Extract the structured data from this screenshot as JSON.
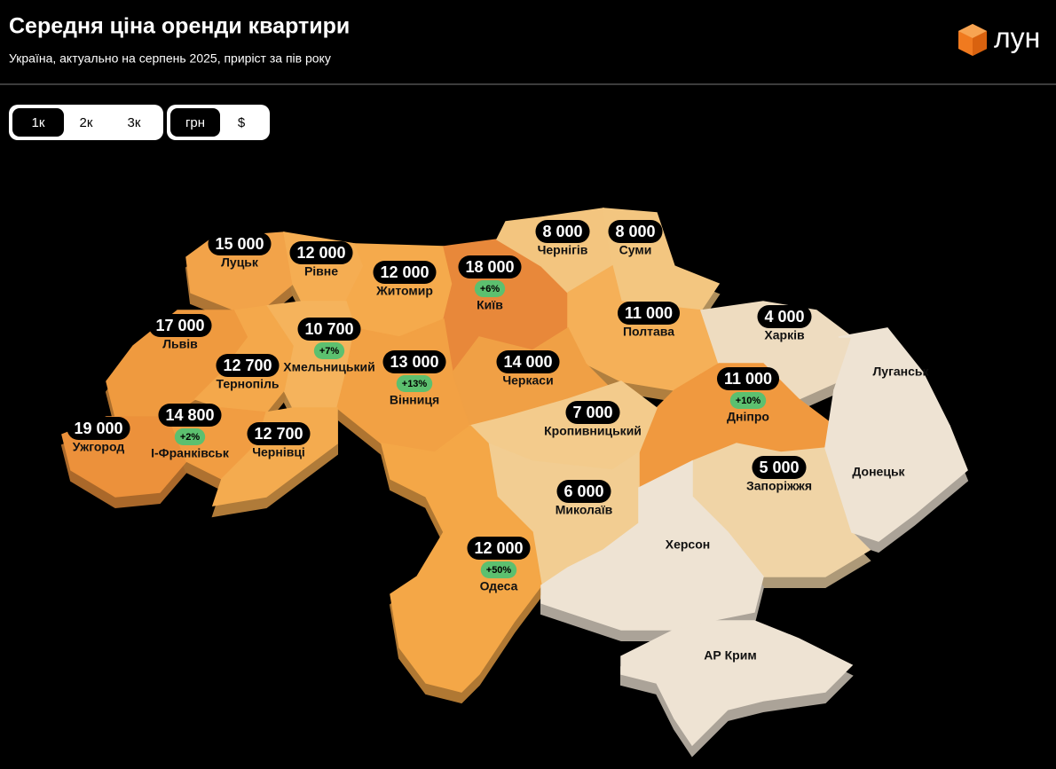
{
  "header": {
    "title": "Середня ціна оренди квартири",
    "subtitle": "Україна, актуально на серпень 2025, приріст за пів року",
    "logo": "лун"
  },
  "controls": {
    "rooms": {
      "options": [
        "1к",
        "2к",
        "3к"
      ],
      "selected": 0
    },
    "currency": {
      "options": [
        "грн",
        "$"
      ],
      "selected": 0
    }
  },
  "regions": [
    {
      "name": "Луцьк",
      "price": "15 000",
      "color": "#f2a349"
    },
    {
      "name": "Рівне",
      "price": "12 000",
      "color": "#f5ad52"
    },
    {
      "name": "Житомир",
      "price": "12 000",
      "color": "#f5aa4c"
    },
    {
      "name": "Київ",
      "price": "18 000",
      "growth": "+6%",
      "color": "#e8883a"
    },
    {
      "name": "Чернігів",
      "price": "8 000",
      "color": "#f3c57f"
    },
    {
      "name": "Суми",
      "price": "8 000",
      "color": "#f3c680"
    },
    {
      "name": "Полтава",
      "price": "11 000",
      "color": "#f5b058"
    },
    {
      "name": "Харків",
      "price": "4 000",
      "color": "#eedcc0"
    },
    {
      "name": "Львів",
      "price": "17 000",
      "color": "#ef9a3f"
    },
    {
      "name": "Хмельницький",
      "price": "10 700",
      "growth": "+7%",
      "color": "#f5b35c"
    },
    {
      "name": "Тернопіль",
      "price": "12 700",
      "color": "#f4a84b"
    },
    {
      "name": "Вінниця",
      "price": "13 000",
      "growth": "+13%",
      "color": "#f2a144"
    },
    {
      "name": "Черкаси",
      "price": "14 000",
      "color": "#f0a045"
    },
    {
      "name": "Дніпро",
      "price": "11 000",
      "growth": "+10%",
      "color": "#f0993f"
    },
    {
      "name": "Кропивницький",
      "price": "7 000",
      "color": "#f3cb8c"
    },
    {
      "name": "Ужгород",
      "price": "19 000",
      "color": "#ec913b"
    },
    {
      "name": "І-Франківськ",
      "price": "14 800",
      "growth": "+2%",
      "color": "#f19d42"
    },
    {
      "name": "Чернівці",
      "price": "12 700",
      "color": "#f4ab4f"
    },
    {
      "name": "Запоріжжя",
      "price": "5 000",
      "color": "#f0d4a6"
    },
    {
      "name": "Миколаїв",
      "price": "6 000",
      "color": "#f2cd92"
    },
    {
      "name": "Одеса",
      "price": "12 000",
      "growth": "+50%",
      "color": "#f4a747"
    },
    {
      "name": "Луганськ",
      "color": "#eee3d3"
    },
    {
      "name": "Донецьк",
      "color": "#eee3d3"
    },
    {
      "name": "Херсон",
      "color": "#eee3d3"
    },
    {
      "name": "АР Крим",
      "color": "#eee3d3"
    }
  ]
}
